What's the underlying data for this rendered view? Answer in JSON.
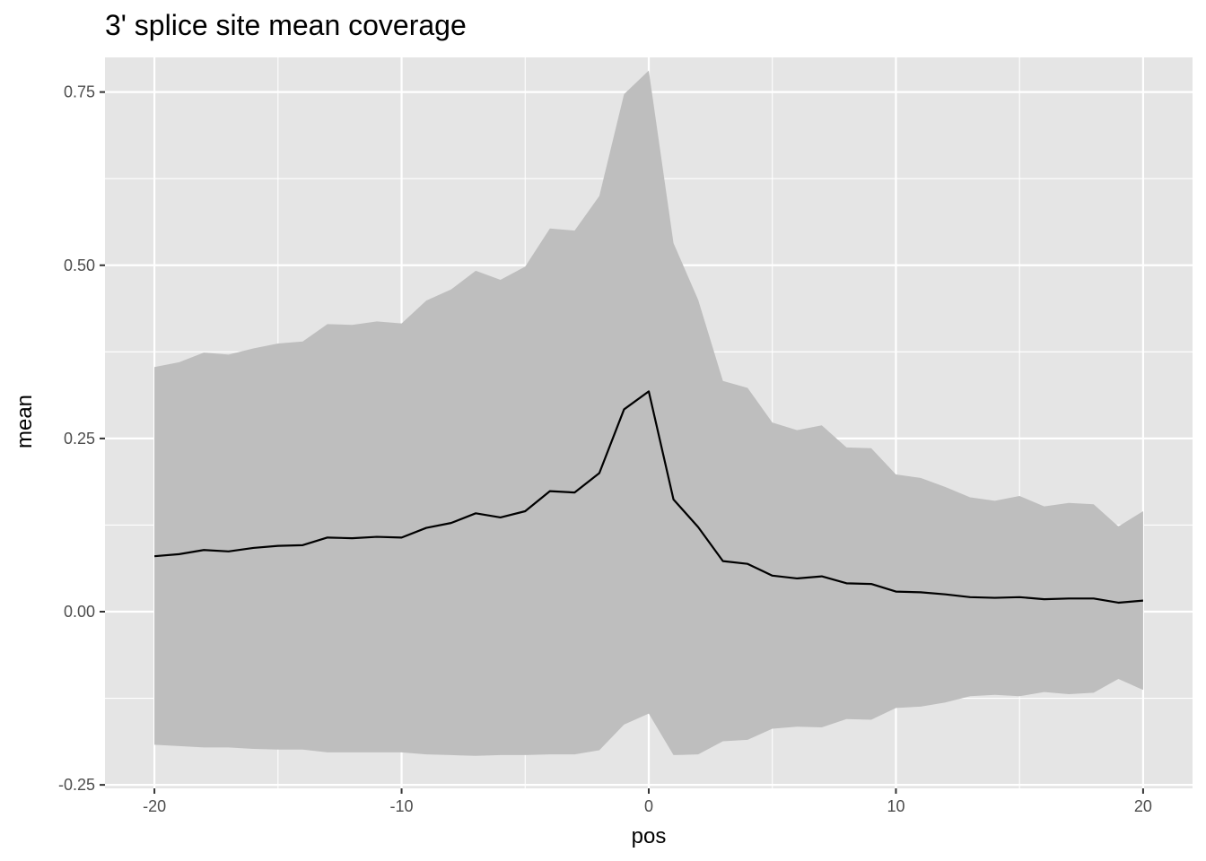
{
  "chart_data": {
    "type": "area",
    "title": "3' splice site mean coverage",
    "xlabel": "pos",
    "ylabel": "mean",
    "xlim": [
      -22,
      22
    ],
    "ylim": [
      -0.255,
      0.8
    ],
    "x_ticks": [
      -20,
      -10,
      0,
      10,
      20
    ],
    "x_tick_labels": [
      "-20",
      "-10",
      "0",
      "10",
      "20"
    ],
    "y_ticks": [
      -0.25,
      0,
      0.25,
      0.5,
      0.75
    ],
    "y_tick_labels": [
      "-0.25",
      "0.00",
      "0.25",
      "0.50",
      "0.75"
    ],
    "grid": true,
    "legend": "none",
    "colors": {
      "panel_background": "#e5e5e5",
      "grid": "#ffffff",
      "ribbon": "#bebebe",
      "line": "#000000"
    },
    "x": [
      -20,
      -19,
      -18,
      -17,
      -16,
      -15,
      -14,
      -13,
      -12,
      -11,
      -10,
      -9,
      -8,
      -7,
      -6,
      -5,
      -4,
      -3,
      -2,
      -1,
      0,
      1,
      2,
      3,
      4,
      5,
      6,
      7,
      8,
      9,
      10,
      11,
      12,
      13,
      14,
      15,
      16,
      17,
      18,
      19,
      20
    ],
    "series": [
      {
        "type": "line",
        "values": [
          0.08,
          0.083,
          0.089,
          0.087,
          0.092,
          0.095,
          0.096,
          0.107,
          0.106,
          0.108,
          0.107,
          0.121,
          0.128,
          0.142,
          0.136,
          0.145,
          0.174,
          0.172,
          0.2,
          0.292,
          0.318,
          0.162,
          0.122,
          0.073,
          0.069,
          0.052,
          0.048,
          0.051,
          0.041,
          0.04,
          0.029,
          0.028,
          0.025,
          0.021,
          0.02,
          0.021,
          0.018,
          0.019,
          0.019,
          0.013,
          0.016
        ]
      },
      {
        "type": "ribbon",
        "upper": [
          0.353,
          0.36,
          0.374,
          0.371,
          0.38,
          0.387,
          0.39,
          0.415,
          0.414,
          0.419,
          0.416,
          0.449,
          0.465,
          0.492,
          0.479,
          0.498,
          0.553,
          0.55,
          0.6,
          0.747,
          0.781,
          0.532,
          0.45,
          0.333,
          0.323,
          0.273,
          0.262,
          0.269,
          0.237,
          0.236,
          0.198,
          0.193,
          0.18,
          0.165,
          0.16,
          0.167,
          0.152,
          0.157,
          0.155,
          0.123,
          0.145
        ],
        "lower": [
          -0.192,
          -0.194,
          -0.196,
          -0.196,
          -0.198,
          -0.199,
          -0.199,
          -0.203,
          -0.203,
          -0.203,
          -0.203,
          -0.206,
          -0.207,
          -0.208,
          -0.207,
          -0.207,
          -0.206,
          -0.206,
          -0.2,
          -0.163,
          -0.147,
          -0.207,
          -0.206,
          -0.187,
          -0.185,
          -0.169,
          -0.166,
          -0.167,
          -0.155,
          -0.156,
          -0.139,
          -0.137,
          -0.131,
          -0.122,
          -0.12,
          -0.122,
          -0.116,
          -0.119,
          -0.117,
          -0.097,
          -0.113
        ]
      }
    ]
  }
}
